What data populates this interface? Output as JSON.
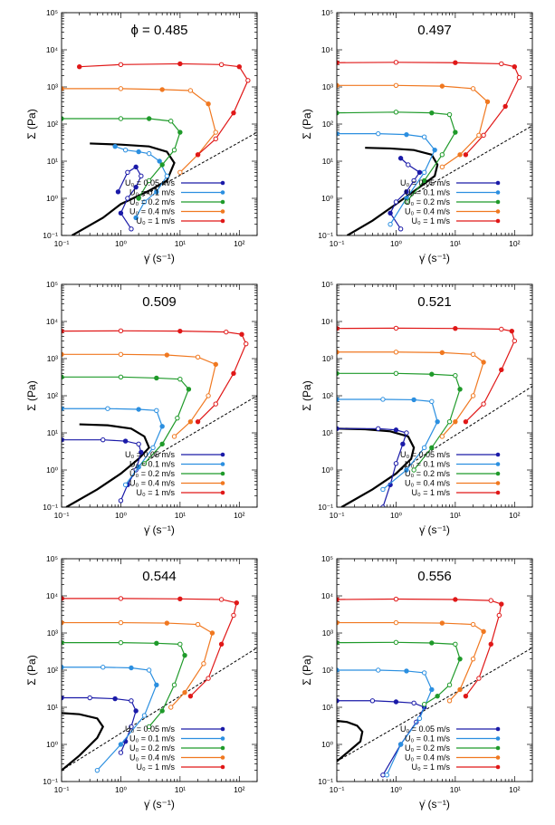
{
  "figure": {
    "legend_labels": [
      "U₀ = 0.05 m/s",
      "U₀ = 0.1 m/s",
      "U₀ = 0.2 m/s",
      "U₀ = 0.4 m/s",
      "U₀ = 1 m/s"
    ],
    "series_colors": [
      "#1a1aa8",
      "#2b8fe0",
      "#1f9a2a",
      "#f07820",
      "#e01818"
    ],
    "xlabel": "γ̇ (s⁻¹)",
    "ylabel": "Σ (Pa)"
  },
  "chart_data": [
    {
      "type": "line",
      "title": "ϕ = 0.485",
      "xscale": "log",
      "yscale": "log",
      "xlim": [
        0.1,
        200
      ],
      "ylim": [
        0.1,
        100000
      ],
      "x_ticks": [
        "10⁻¹",
        "10⁰",
        "10¹",
        "10²"
      ],
      "y_ticks": [
        "10⁻¹",
        "10⁰",
        "10¹",
        "10²",
        "10³",
        "10⁴",
        "10⁵"
      ],
      "legend_position": "bottom-right",
      "series": [
        {
          "name": "U₀ = 0.05 m/s",
          "x": [
            0.9,
            1.3,
            1.8,
            2.2,
            1.8,
            1.3,
            1.0,
            1.5
          ],
          "y": [
            1.5,
            5,
            7,
            4,
            2,
            1,
            0.4,
            0.15
          ]
        },
        {
          "name": "U₀ = 0.1 m/s",
          "x": [
            0.8,
            1.2,
            2,
            3,
            4.5,
            6,
            4,
            2.5,
            1.8
          ],
          "y": [
            25,
            20,
            18,
            16,
            10,
            4,
            1.5,
            0.8,
            0.3
          ]
        },
        {
          "name": "U₀ = 0.2 m/s",
          "x": [
            0.1,
            1,
            3,
            7,
            10,
            8,
            5,
            3,
            2
          ],
          "y": [
            140,
            140,
            140,
            120,
            60,
            20,
            8,
            3,
            1
          ]
        },
        {
          "name": "U₀ = 0.4 m/s",
          "x": [
            0.1,
            1,
            5,
            15,
            30,
            40,
            20,
            10
          ],
          "y": [
            900,
            900,
            850,
            800,
            350,
            60,
            15,
            5
          ]
        },
        {
          "name": "U₀ = 1 m/s",
          "x": [
            0.2,
            1,
            10,
            50,
            100,
            140,
            80,
            40,
            20
          ],
          "y": [
            3500,
            4000,
            4200,
            4000,
            3500,
            1500,
            200,
            40,
            15
          ]
        }
      ],
      "model_curve": {
        "x": [
          0.15,
          0.5,
          1,
          3,
          6,
          8,
          6,
          3,
          1,
          0.3
        ],
        "y": [
          0.1,
          0.3,
          0.7,
          1.6,
          3,
          9,
          18,
          25,
          28,
          30
        ]
      },
      "reference_line": {
        "x": [
          2,
          200
        ],
        "y": [
          1,
          60
        ]
      }
    },
    {
      "type": "line",
      "title": "0.497",
      "xscale": "log",
      "yscale": "log",
      "xlim": [
        0.1,
        200
      ],
      "ylim": [
        0.1,
        100000
      ],
      "x_ticks": [
        "10⁻¹",
        "10⁰",
        "10¹",
        "10²"
      ],
      "y_ticks": [
        "10⁻¹",
        "10⁰",
        "10¹",
        "10²",
        "10³",
        "10⁴",
        "10⁵"
      ],
      "legend_position": "bottom-right",
      "series": [
        {
          "name": "U₀ = 0.05 m/s",
          "x": [
            1.2,
            1.6,
            2.5,
            2,
            1.5,
            1.0,
            0.8,
            1.2
          ],
          "y": [
            12,
            8,
            5,
            3,
            1.5,
            0.8,
            0.4,
            0.15
          ]
        },
        {
          "name": "U₀ = 0.1 m/s",
          "x": [
            0.1,
            0.5,
            1.5,
            3,
            4.5,
            3,
            1.5,
            0.8
          ],
          "y": [
            55,
            55,
            52,
            45,
            20,
            5,
            1,
            0.2
          ]
        },
        {
          "name": "U₀ = 0.2 m/s",
          "x": [
            0.1,
            1,
            4,
            8,
            10,
            6,
            3,
            1.5
          ],
          "y": [
            200,
            210,
            200,
            180,
            60,
            15,
            3,
            0.8
          ]
        },
        {
          "name": "U₀ = 0.4 m/s",
          "x": [
            0.1,
            1,
            6,
            20,
            35,
            25,
            12,
            6
          ],
          "y": [
            1100,
            1100,
            1050,
            900,
            400,
            50,
            15,
            7
          ]
        },
        {
          "name": "U₀ = 1 m/s",
          "x": [
            0.1,
            1,
            10,
            60,
            100,
            120,
            70,
            30,
            15
          ],
          "y": [
            4500,
            4600,
            4500,
            4200,
            3500,
            1800,
            300,
            50,
            15
          ]
        }
      ],
      "model_curve": {
        "x": [
          0.15,
          0.4,
          1,
          2.5,
          4.5,
          5,
          4,
          2,
          0.8,
          0.3
        ],
        "y": [
          0.1,
          0.25,
          0.7,
          2,
          4,
          8,
          15,
          20,
          22,
          23
        ]
      },
      "reference_line": {
        "x": [
          1.5,
          200
        ],
        "y": [
          1,
          90
        ]
      }
    },
    {
      "type": "line",
      "title": "0.509",
      "xscale": "log",
      "yscale": "log",
      "xlim": [
        0.1,
        200
      ],
      "ylim": [
        0.1,
        100000
      ],
      "x_ticks": [
        "10⁻¹",
        "10⁰",
        "10¹",
        "10²"
      ],
      "y_ticks": [
        "10⁻¹",
        "10⁰",
        "10¹",
        "10²",
        "10³",
        "10⁴",
        "10⁵"
      ],
      "legend_position": "bottom-right",
      "series": [
        {
          "name": "U₀ = 0.05 m/s",
          "x": [
            0.1,
            0.5,
            1.2,
            2,
            2.2,
            1.8,
            1.3,
            1.0
          ],
          "y": [
            6.5,
            6.5,
            6,
            5,
            3,
            1,
            0.4,
            0.15
          ]
        },
        {
          "name": "U₀ = 0.1 m/s",
          "x": [
            0.1,
            0.6,
            2,
            4,
            5,
            3.5,
            2,
            1.2
          ],
          "y": [
            45,
            45,
            43,
            40,
            15,
            4,
            1.2,
            0.4
          ]
        },
        {
          "name": "U₀ = 0.2 m/s",
          "x": [
            0.1,
            1,
            4,
            10,
            14,
            9,
            5,
            2.5
          ],
          "y": [
            320,
            320,
            300,
            280,
            150,
            25,
            5,
            1.5
          ]
        },
        {
          "name": "U₀ = 0.4 m/s",
          "x": [
            0.1,
            1,
            6,
            20,
            40,
            30,
            15,
            8
          ],
          "y": [
            1300,
            1300,
            1250,
            1100,
            700,
            100,
            20,
            8
          ]
        },
        {
          "name": "U₀ = 1 m/s",
          "x": [
            0.1,
            1,
            10,
            60,
            110,
            130,
            80,
            40,
            20
          ],
          "y": [
            5500,
            5600,
            5500,
            5200,
            4500,
            2500,
            400,
            60,
            20
          ]
        }
      ],
      "model_curve": {
        "x": [
          0.12,
          0.4,
          1,
          2,
          3,
          2.5,
          1.5,
          0.6,
          0.2
        ],
        "y": [
          0.1,
          0.3,
          0.8,
          2,
          4,
          8,
          13,
          16,
          17
        ]
      },
      "reference_line": {
        "x": [
          1.5,
          200
        ],
        "y": [
          1,
          100
        ]
      }
    },
    {
      "type": "line",
      "title": "0.521",
      "xscale": "log",
      "yscale": "log",
      "xlim": [
        0.1,
        200
      ],
      "ylim": [
        0.1,
        100000
      ],
      "x_ticks": [
        "10⁻¹",
        "10⁰",
        "10¹",
        "10²"
      ],
      "y_ticks": [
        "10⁻¹",
        "10⁰",
        "10¹",
        "10²",
        "10³",
        "10⁴",
        "10⁵"
      ],
      "legend_position": "bottom-right",
      "series": [
        {
          "name": "U₀ = 0.05 m/s",
          "x": [
            0.1,
            0.5,
            1,
            1.5,
            1.3,
            1,
            0.8,
            0.6
          ],
          "y": [
            13,
            13,
            12,
            10,
            5,
            1.5,
            0.4,
            0.1
          ]
        },
        {
          "name": "U₀ = 0.1 m/s",
          "x": [
            0.1,
            0.6,
            2,
            4,
            5,
            3,
            1.5,
            0.6
          ],
          "y": [
            80,
            80,
            78,
            70,
            20,
            4,
            1,
            0.3
          ]
        },
        {
          "name": "U₀ = 0.2 m/s",
          "x": [
            0.1,
            1,
            4,
            10,
            12,
            8,
            4,
            2
          ],
          "y": [
            400,
            400,
            380,
            350,
            150,
            20,
            4,
            1
          ]
        },
        {
          "name": "U₀ = 0.4 m/s",
          "x": [
            0.1,
            1,
            6,
            20,
            30,
            20,
            10,
            6
          ],
          "y": [
            1500,
            1500,
            1450,
            1300,
            800,
            100,
            20,
            8
          ]
        },
        {
          "name": "U₀ = 1 m/s",
          "x": [
            0.1,
            1,
            10,
            60,
            90,
            100,
            60,
            30,
            15
          ],
          "y": [
            6500,
            6600,
            6500,
            6200,
            5500,
            3000,
            500,
            60,
            20
          ]
        }
      ],
      "model_curve": {
        "x": [
          0.12,
          0.4,
          1,
          1.8,
          2,
          1.6,
          0.8,
          0.3,
          0.1
        ],
        "y": [
          0.1,
          0.3,
          0.8,
          2,
          4,
          8,
          11,
          12.5,
          13
        ]
      },
      "reference_line": {
        "x": [
          1.2,
          200
        ],
        "y": [
          1,
          180
        ]
      }
    },
    {
      "type": "line",
      "title": "0.544",
      "xscale": "log",
      "yscale": "log",
      "xlim": [
        0.1,
        200
      ],
      "ylim": [
        0.1,
        100000
      ],
      "x_ticks": [
        "10⁻¹",
        "10⁰",
        "10¹",
        "10²"
      ],
      "y_ticks": [
        "10⁻¹",
        "10⁰",
        "10¹",
        "10²",
        "10³",
        "10⁴",
        "10⁵"
      ],
      "legend_position": "bottom-right",
      "series": [
        {
          "name": "U₀ = 0.05 m/s",
          "x": [
            0.1,
            0.3,
            0.8,
            1.5,
            1.8,
            1.5,
            1.2,
            1.0
          ],
          "y": [
            18,
            18,
            17,
            15,
            8,
            3,
            1.2,
            0.6
          ]
        },
        {
          "name": "U₀ = 0.1 m/s",
          "x": [
            0.1,
            0.5,
            1.5,
            3,
            4,
            2.5,
            1,
            0.4
          ],
          "y": [
            120,
            120,
            115,
            100,
            40,
            6,
            1,
            0.2
          ]
        },
        {
          "name": "U₀ = 0.2 m/s",
          "x": [
            0.1,
            1,
            4,
            10,
            12,
            8,
            5,
            3
          ],
          "y": [
            550,
            550,
            530,
            500,
            250,
            40,
            8,
            3
          ]
        },
        {
          "name": "U₀ = 0.4 m/s",
          "x": [
            0.1,
            1,
            6,
            20,
            35,
            25,
            12,
            7
          ],
          "y": [
            1900,
            1900,
            1850,
            1700,
            1000,
            150,
            25,
            10
          ]
        },
        {
          "name": "U₀ = 1 m/s",
          "x": [
            0.1,
            1,
            10,
            50,
            90,
            80,
            50,
            30,
            15
          ],
          "y": [
            8500,
            8500,
            8300,
            8000,
            6500,
            3000,
            500,
            60,
            20
          ]
        }
      ],
      "model_curve": {
        "x": [
          0.1,
          0.2,
          0.4,
          0.5,
          0.4,
          0.2,
          0.1
        ],
        "y": [
          0.2,
          0.5,
          1.5,
          3,
          5,
          6.5,
          7
        ]
      },
      "reference_line": {
        "x": [
          0.1,
          200
        ],
        "y": [
          0.2,
          400
        ]
      }
    },
    {
      "type": "line",
      "title": "0.556",
      "xscale": "log",
      "yscale": "log",
      "xlim": [
        0.1,
        200
      ],
      "ylim": [
        0.1,
        100000
      ],
      "x_ticks": [
        "10⁻¹",
        "10⁰",
        "10¹",
        "10²"
      ],
      "y_ticks": [
        "10⁻¹",
        "10⁰",
        "10¹",
        "10²",
        "10³",
        "10⁴",
        "10⁵"
      ],
      "legend_position": "bottom-right",
      "series": [
        {
          "name": "U₀ = 0.05 m/s",
          "x": [
            0.1,
            0.4,
            1,
            2,
            3,
            2.2,
            1.2,
            0.6
          ],
          "y": [
            15,
            15,
            14,
            13,
            10,
            4,
            1,
            0.15
          ]
        },
        {
          "name": "U₀ = 0.1 m/s",
          "x": [
            0.1,
            0.5,
            1.5,
            3,
            4,
            2.5,
            1.2,
            0.7
          ],
          "y": [
            100,
            100,
            95,
            85,
            30,
            5,
            1,
            0.15
          ]
        },
        {
          "name": "U₀ = 0.2 m/s",
          "x": [
            0.1,
            1,
            4,
            10,
            12,
            8,
            5,
            3
          ],
          "y": [
            550,
            560,
            540,
            500,
            200,
            40,
            20,
            12
          ]
        },
        {
          "name": "U₀ = 0.4 m/s",
          "x": [
            0.1,
            1,
            6,
            20,
            30,
            20,
            12,
            8
          ],
          "y": [
            1900,
            1900,
            1850,
            1700,
            1100,
            200,
            30,
            15
          ]
        },
        {
          "name": "U₀ = 1 m/s",
          "x": [
            0.1,
            1,
            10,
            40,
            60,
            55,
            40,
            25,
            15
          ],
          "y": [
            8000,
            8200,
            8000,
            7500,
            6000,
            3000,
            500,
            60,
            20
          ]
        }
      ],
      "model_curve": {
        "x": [
          0.1,
          0.15,
          0.25,
          0.27,
          0.22,
          0.15,
          0.1
        ],
        "y": [
          0.35,
          0.6,
          1.2,
          2.2,
          3.2,
          4,
          4.3
        ]
      },
      "reference_line": {
        "x": [
          0.1,
          200
        ],
        "y": [
          0.35,
          400
        ]
      }
    }
  ]
}
